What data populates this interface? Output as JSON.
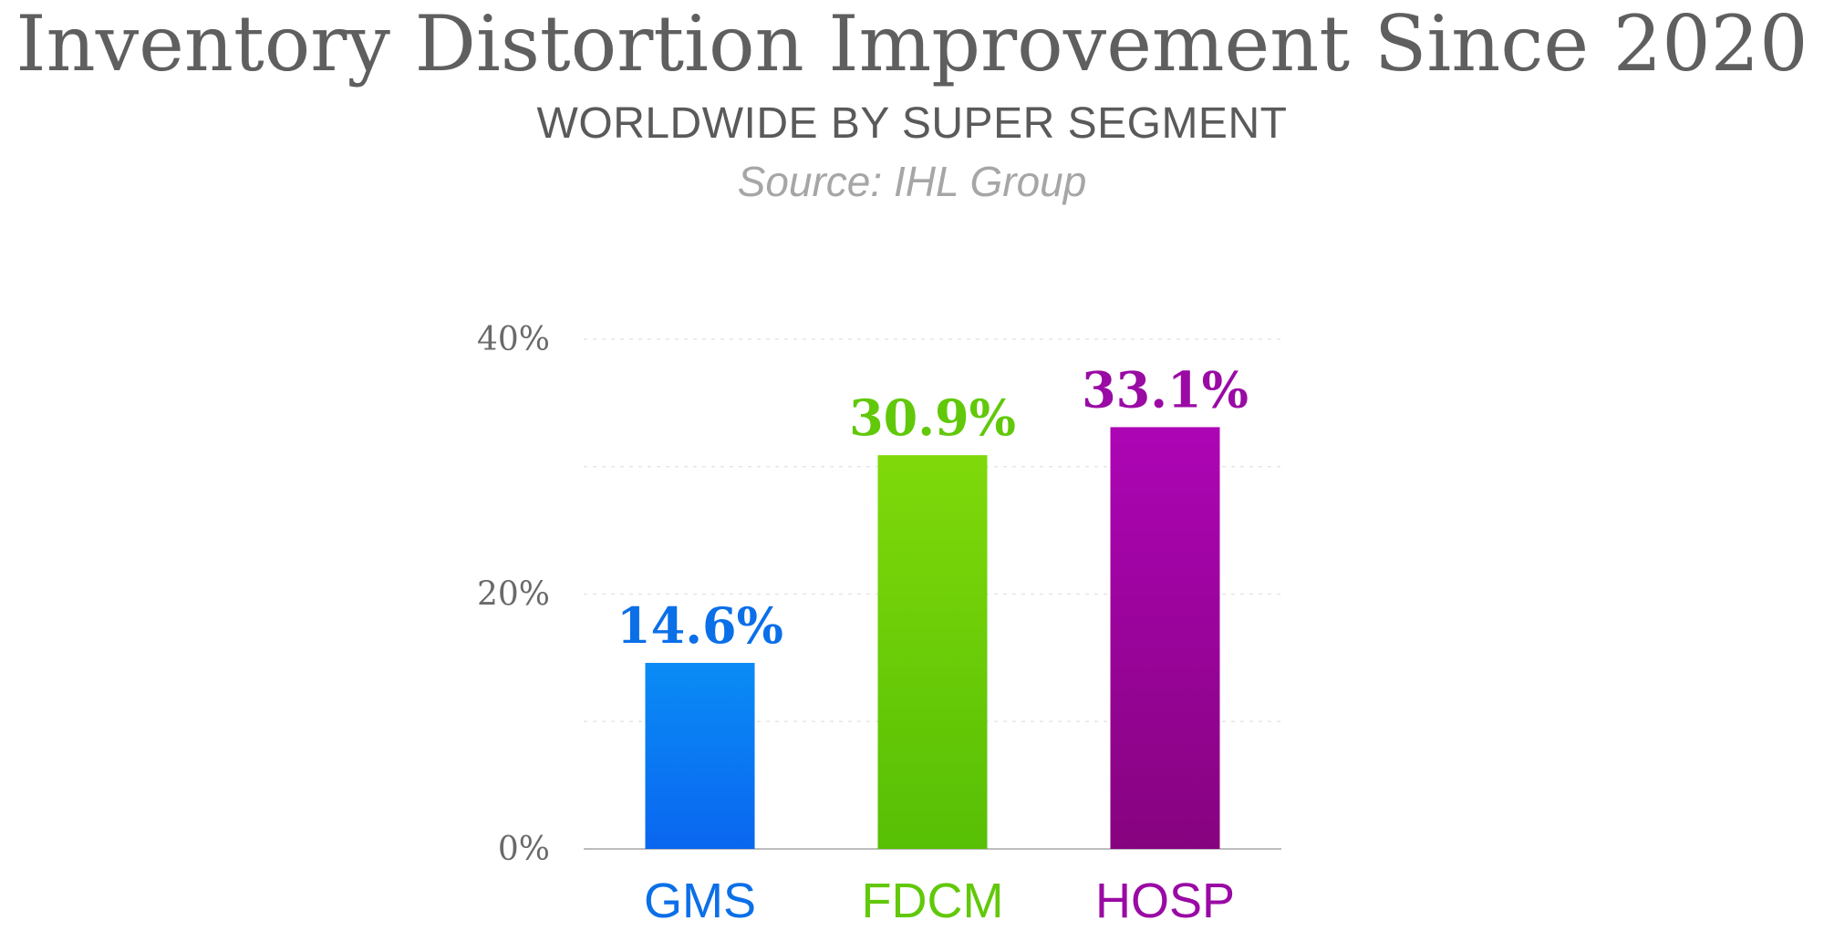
{
  "header": {
    "title": "Inventory Distortion Improvement Since 2020",
    "subtitle": "WORLDWIDE BY SUPER SEGMENT",
    "source": "Source: IHL Group"
  },
  "chart_data": {
    "type": "bar",
    "categories": [
      "GMS",
      "FDCM",
      "HOSP"
    ],
    "values": [
      14.6,
      30.9,
      33.1
    ],
    "data_labels": [
      "14.6%",
      "30.9%",
      "33.1%"
    ],
    "ylim": [
      0,
      40
    ],
    "yticks": [
      {
        "value": 0,
        "label": "0%"
      },
      {
        "value": 20,
        "label": "20%"
      },
      {
        "value": 40,
        "label": "40%"
      }
    ],
    "minor_gridlines": [
      10,
      30
    ],
    "grid": true,
    "colors": {
      "GMS": {
        "top": "#0a8cf5",
        "bottom": "#0a66f0",
        "label": "#0b6fe8"
      },
      "FDCM": {
        "top": "#7fd90a",
        "bottom": "#57bf05",
        "label": "#62c80a"
      },
      "HOSP": {
        "top": "#ad05b5",
        "bottom": "#86037f",
        "label": "#9a0aa4"
      }
    }
  }
}
